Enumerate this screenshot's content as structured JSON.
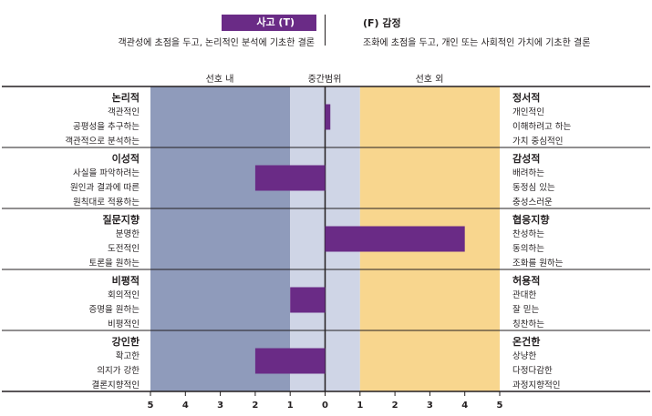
{
  "header": {
    "left_badge": "사고 (T)",
    "left_desc": "객관성에 초점을 두고, 논리적인 분석에 기초한 결론",
    "right_title": "(F) 감정",
    "right_desc": "조화에 초점을 두고, 개인 또는 사회적인 가치에 기초한 결론"
  },
  "bands": {
    "in": "선호 내",
    "mid": "중간범위",
    "out": "선호 외"
  },
  "colors": {
    "in_band": "#8f9bbb",
    "mid_band": "#cfd5e6",
    "out_band": "#f8d68e",
    "bar": "#6a2b86"
  },
  "rows": [
    {
      "left_title": "논리적",
      "left_items": [
        "객관적인",
        "공평성을 추구하는",
        "객관적으로 분석하는"
      ],
      "right_title": "정서적",
      "right_items": [
        "개인적인",
        "이해하려고 하는",
        "가치 중심적인"
      ]
    },
    {
      "left_title": "이성적",
      "left_items": [
        "사실을 파악하려는",
        "원인과 결과에 따른",
        "원칙대로 적용하는"
      ],
      "right_title": "감성적",
      "right_items": [
        "배려하는",
        "동정심 있는",
        "충성스러운"
      ]
    },
    {
      "left_title": "질문지향",
      "left_items": [
        "분명한",
        "도전적인",
        "토론을 원하는"
      ],
      "right_title": "협응지향",
      "right_items": [
        "찬성하는",
        "동의하는",
        "조화를 원하는"
      ]
    },
    {
      "left_title": "비평적",
      "left_items": [
        "회의적인",
        "증명을 원하는",
        "비평적인"
      ],
      "right_title": "허용적",
      "right_items": [
        "관대한",
        "잘 믿는",
        "칭찬하는"
      ]
    },
    {
      "left_title": "강인한",
      "left_items": [
        "확고한",
        "의지가 강한",
        "결론지향적인"
      ],
      "right_title": "온건한",
      "right_items": [
        "상냥한",
        "다정다감한",
        "과정지향적인"
      ]
    }
  ],
  "chart_data": {
    "type": "bar",
    "orientation": "horizontal",
    "categories": [
      "논리적 / 정서적",
      "이성적 / 감성적",
      "질문지향 / 협응지향",
      "비평적 / 허용적",
      "강인한 / 온건한"
    ],
    "values": [
      0.15,
      -2,
      4,
      -1,
      -2
    ],
    "xlim": [
      -5,
      5
    ],
    "tick_labels": [
      "5",
      "4",
      "3",
      "2",
      "1",
      "0",
      "1",
      "2",
      "3",
      "4",
      "5"
    ]
  }
}
